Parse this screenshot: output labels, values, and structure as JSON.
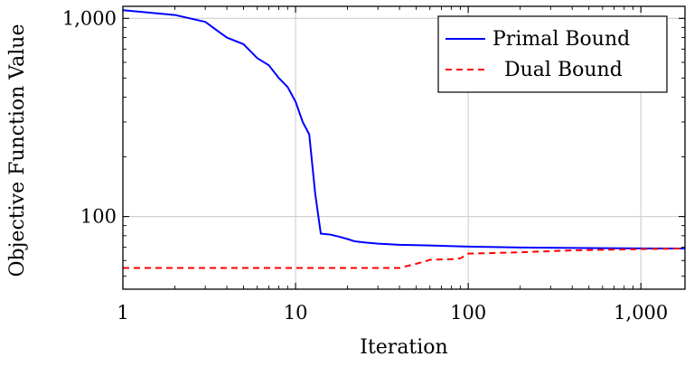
{
  "chart_data": {
    "type": "line",
    "xlabel": "Iteration",
    "ylabel": "Objective Function Value",
    "xscale": "log",
    "yscale": "log",
    "xlim": [
      1,
      1800
    ],
    "ylim": [
      43,
      1150
    ],
    "grid": true,
    "legend": "top-right",
    "x_ticks": [
      {
        "value": 1,
        "label": "1"
      },
      {
        "value": 10,
        "label": "10"
      },
      {
        "value": 100,
        "label": "100"
      },
      {
        "value": 1000,
        "label": "1,000"
      }
    ],
    "y_ticks": [
      {
        "value": 100,
        "label": "100"
      },
      {
        "value": 1000,
        "label": "1,000"
      }
    ],
    "series": [
      {
        "name": "Primal Bound",
        "color": "#0000ff",
        "style": "solid",
        "x": [
          1,
          2,
          3,
          3.5,
          4,
          5,
          6,
          7,
          8,
          9,
          10,
          11,
          12,
          13,
          14,
          16,
          18,
          20,
          22,
          25,
          30,
          40,
          60,
          100,
          200,
          500,
          1000,
          1800
        ],
        "y": [
          1100,
          1040,
          960,
          870,
          800,
          740,
          630,
          580,
          500,
          450,
          380,
          300,
          260,
          130,
          82,
          81,
          79,
          77,
          75,
          74,
          73,
          72,
          71.5,
          70.5,
          69.8,
          69.3,
          69.1,
          69
        ]
      },
      {
        "name": "Dual Bound",
        "color": "#ff0000",
        "style": "dashed",
        "x": [
          1,
          10,
          30,
          40,
          45,
          55,
          60,
          80,
          90,
          100,
          200,
          400,
          1000,
          1800
        ],
        "y": [
          55,
          55,
          55,
          55,
          56.5,
          59,
          60.5,
          61,
          61.5,
          65,
          66,
          67.5,
          68.5,
          69
        ]
      }
    ]
  }
}
